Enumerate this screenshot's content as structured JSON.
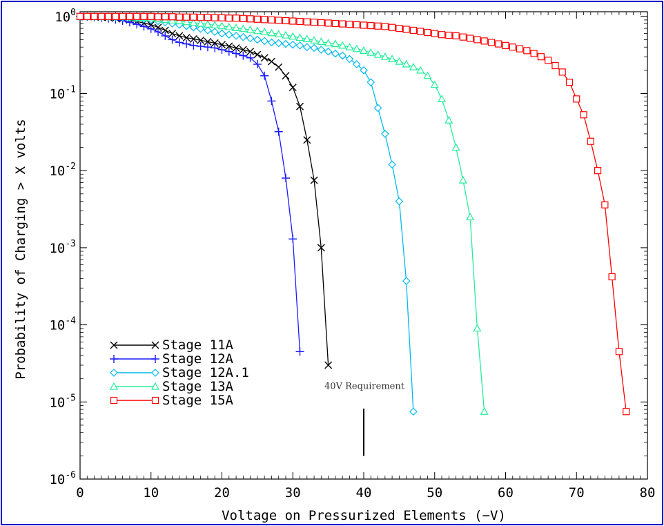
{
  "chart_data": {
    "type": "line",
    "title": "",
    "xlabel": "Voltage on Pressurized Elements (−V)",
    "ylabel": "Probability of Charging > X volts",
    "xlim": [
      0,
      80
    ],
    "ylim": [
      1e-06,
      1.15
    ],
    "y_scale": "log",
    "x_ticks": [
      0,
      10,
      20,
      30,
      40,
      50,
      60,
      70,
      80
    ],
    "x_tick_labels": [
      "0",
      "10",
      "20",
      "30",
      "40",
      "50",
      "60",
      "70",
      "80"
    ],
    "y_ticks": [
      1e-06,
      1e-05,
      0.0001,
      0.001,
      0.01,
      0.1,
      1
    ],
    "y_tick_labels": [
      {
        "base": "10",
        "exp": "-6"
      },
      {
        "base": "10",
        "exp": "-5"
      },
      {
        "base": "10",
        "exp": "-4"
      },
      {
        "base": "10",
        "exp": "-3"
      },
      {
        "base": "10",
        "exp": "-2"
      },
      {
        "base": "10",
        "exp": "-1"
      },
      {
        "base": "10",
        "exp": "0"
      }
    ],
    "grid": false,
    "legend_position": "lower-left",
    "series": [
      {
        "name": "Stage 11A",
        "color": "#000000",
        "marker": "x",
        "x": [
          0,
          1,
          2,
          3,
          4,
          5,
          6,
          7,
          8,
          9,
          10,
          11,
          12,
          13,
          14,
          15,
          16,
          17,
          18,
          19,
          20,
          21,
          22,
          23,
          24,
          25,
          26,
          27,
          28,
          29,
          30,
          31,
          32,
          33,
          34,
          35
        ],
        "y": [
          1.0,
          1.0,
          0.99,
          0.98,
          0.97,
          0.95,
          0.93,
          0.9,
          0.86,
          0.82,
          0.78,
          0.72,
          0.66,
          0.6,
          0.56,
          0.53,
          0.51,
          0.49,
          0.47,
          0.45,
          0.43,
          0.41,
          0.39,
          0.37,
          0.35,
          0.32,
          0.29,
          0.26,
          0.22,
          0.17,
          0.12,
          0.068,
          0.025,
          0.0075,
          0.001,
          3e-05
        ]
      },
      {
        "name": "Stage 12A",
        "color": "#1a1aff",
        "marker": "+",
        "x": [
          0,
          1,
          2,
          3,
          4,
          5,
          6,
          7,
          8,
          9,
          10,
          11,
          12,
          13,
          14,
          15,
          16,
          17,
          18,
          19,
          20,
          21,
          22,
          23,
          24,
          25,
          26,
          27,
          28,
          29,
          30,
          31
        ],
        "y": [
          1.0,
          0.99,
          0.98,
          0.96,
          0.94,
          0.91,
          0.88,
          0.84,
          0.79,
          0.74,
          0.69,
          0.63,
          0.56,
          0.5,
          0.46,
          0.44,
          0.42,
          0.41,
          0.4,
          0.39,
          0.37,
          0.35,
          0.33,
          0.31,
          0.29,
          0.24,
          0.17,
          0.08,
          0.032,
          0.008,
          0.0013,
          4.5e-05
        ]
      },
      {
        "name": "Stage 12A.1",
        "color": "#00bbee",
        "marker": "diamond",
        "x": [
          0,
          1,
          2,
          3,
          4,
          5,
          6,
          7,
          8,
          9,
          10,
          11,
          12,
          13,
          14,
          15,
          16,
          17,
          18,
          19,
          20,
          21,
          22,
          23,
          24,
          25,
          26,
          27,
          28,
          29,
          30,
          31,
          32,
          33,
          34,
          35,
          36,
          37,
          38,
          39,
          40,
          41,
          42,
          43,
          44,
          45,
          46,
          47
        ],
        "y": [
          1.0,
          1.0,
          1.0,
          0.99,
          0.99,
          0.98,
          0.97,
          0.96,
          0.94,
          0.92,
          0.9,
          0.87,
          0.84,
          0.81,
          0.78,
          0.75,
          0.72,
          0.69,
          0.66,
          0.63,
          0.6,
          0.58,
          0.56,
          0.54,
          0.52,
          0.5,
          0.48,
          0.46,
          0.45,
          0.44,
          0.43,
          0.42,
          0.4,
          0.39,
          0.37,
          0.35,
          0.33,
          0.31,
          0.28,
          0.24,
          0.2,
          0.14,
          0.065,
          0.03,
          0.012,
          0.004,
          0.00037,
          7.5e-06
        ]
      },
      {
        "name": "Stage 13A",
        "color": "#22ee99",
        "marker": "triangle",
        "x": [
          0,
          1,
          2,
          3,
          4,
          5,
          6,
          7,
          8,
          9,
          10,
          11,
          12,
          13,
          14,
          15,
          16,
          17,
          18,
          19,
          20,
          21,
          22,
          23,
          24,
          25,
          26,
          27,
          28,
          29,
          30,
          31,
          32,
          33,
          34,
          35,
          36,
          37,
          38,
          39,
          40,
          41,
          42,
          43,
          44,
          45,
          46,
          47,
          48,
          49,
          50,
          51,
          52,
          53,
          54,
          55,
          56,
          57
        ],
        "y": [
          1.0,
          1.0,
          1.0,
          1.0,
          1.0,
          0.99,
          0.99,
          0.98,
          0.97,
          0.96,
          0.95,
          0.93,
          0.91,
          0.89,
          0.87,
          0.85,
          0.83,
          0.81,
          0.79,
          0.77,
          0.75,
          0.73,
          0.71,
          0.69,
          0.67,
          0.65,
          0.63,
          0.61,
          0.59,
          0.57,
          0.55,
          0.53,
          0.51,
          0.49,
          0.47,
          0.45,
          0.44,
          0.42,
          0.4,
          0.38,
          0.36,
          0.34,
          0.32,
          0.3,
          0.28,
          0.26,
          0.24,
          0.22,
          0.2,
          0.17,
          0.13,
          0.085,
          0.045,
          0.02,
          0.0075,
          0.0025,
          9e-05,
          7.5e-06
        ]
      },
      {
        "name": "Stage 15A",
        "color": "#ff0000",
        "marker": "square",
        "x": [
          0,
          1,
          2,
          3,
          4,
          5,
          6,
          7,
          8,
          9,
          10,
          11,
          12,
          13,
          14,
          15,
          16,
          17,
          18,
          19,
          20,
          21,
          22,
          23,
          24,
          25,
          26,
          27,
          28,
          29,
          30,
          31,
          32,
          33,
          34,
          35,
          36,
          37,
          38,
          39,
          40,
          41,
          42,
          43,
          44,
          45,
          46,
          47,
          48,
          49,
          50,
          51,
          52,
          53,
          54,
          55,
          56,
          57,
          58,
          59,
          60,
          61,
          62,
          63,
          64,
          65,
          66,
          67,
          68,
          69,
          70,
          71,
          72,
          73,
          74,
          75,
          76,
          77
        ],
        "y": [
          1.0,
          1.0,
          1.0,
          1.0,
          1.0,
          1.0,
          1.0,
          1.0,
          1.0,
          1.0,
          1.0,
          0.99,
          0.99,
          0.99,
          0.98,
          0.98,
          0.98,
          0.97,
          0.97,
          0.96,
          0.96,
          0.95,
          0.95,
          0.94,
          0.93,
          0.92,
          0.91,
          0.9,
          0.89,
          0.88,
          0.87,
          0.86,
          0.85,
          0.84,
          0.83,
          0.82,
          0.81,
          0.8,
          0.79,
          0.78,
          0.77,
          0.76,
          0.75,
          0.74,
          0.72,
          0.7,
          0.68,
          0.66,
          0.64,
          0.62,
          0.6,
          0.58,
          0.57,
          0.56,
          0.54,
          0.52,
          0.5,
          0.48,
          0.46,
          0.44,
          0.42,
          0.4,
          0.38,
          0.36,
          0.33,
          0.3,
          0.27,
          0.23,
          0.19,
          0.14,
          0.085,
          0.053,
          0.024,
          0.01,
          0.0036,
          0.00042,
          4.5e-05,
          7.5e-06
        ]
      }
    ],
    "annotations": [
      {
        "text": "40V Requirement",
        "x": 40,
        "y": 1.6e-05
      }
    ],
    "reference_lines": [
      {
        "x": 40,
        "y_from": 2e-06,
        "y_to": 8.2e-06,
        "color": "#000000"
      }
    ]
  }
}
